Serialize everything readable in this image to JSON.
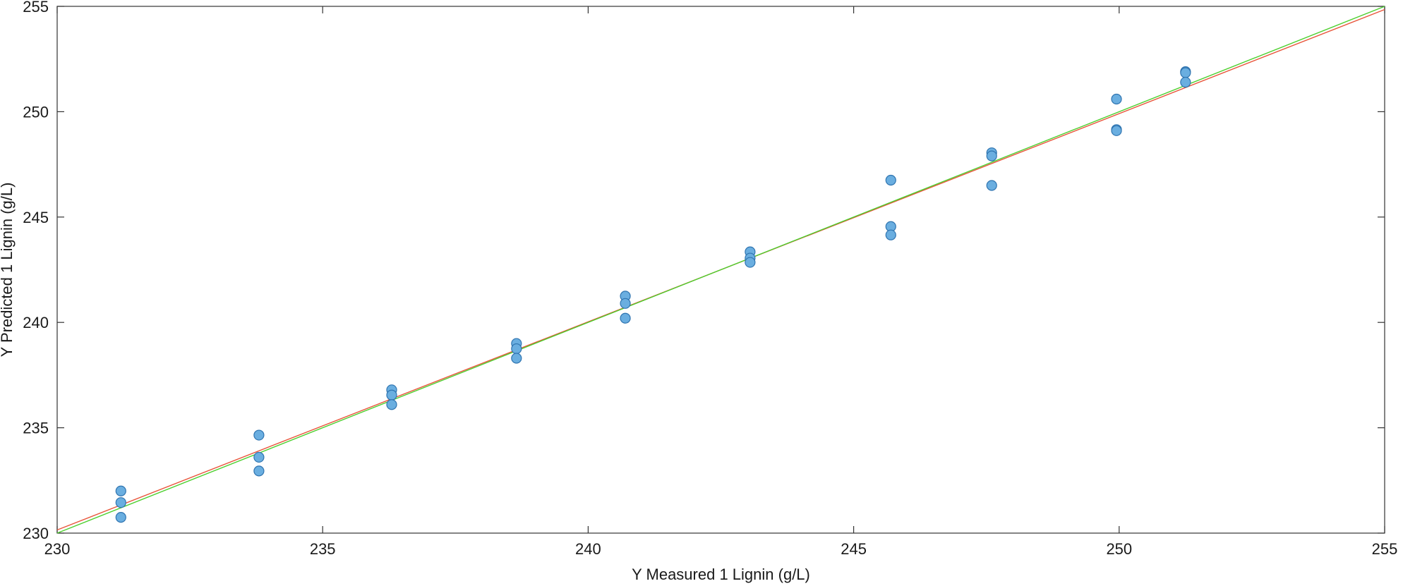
{
  "chart_data": {
    "type": "scatter",
    "title": "",
    "xlabel": "Y Measured 1 Lignin (g/L)",
    "ylabel": "Y Predicted 1 Lignin (g/L)",
    "xlim": [
      230,
      255
    ],
    "ylim": [
      230,
      255
    ],
    "xticks": [
      230,
      235,
      240,
      245,
      250,
      255
    ],
    "yticks": [
      230,
      235,
      240,
      245,
      250,
      255
    ],
    "grid": false,
    "points": [
      {
        "x": 231.2,
        "y": 232.0
      },
      {
        "x": 231.2,
        "y": 231.45
      },
      {
        "x": 231.2,
        "y": 230.75
      },
      {
        "x": 233.8,
        "y": 234.65
      },
      {
        "x": 233.8,
        "y": 233.6
      },
      {
        "x": 233.8,
        "y": 232.95
      },
      {
        "x": 236.3,
        "y": 236.8
      },
      {
        "x": 236.3,
        "y": 236.55
      },
      {
        "x": 236.3,
        "y": 236.1
      },
      {
        "x": 238.65,
        "y": 239.0
      },
      {
        "x": 238.65,
        "y": 238.75
      },
      {
        "x": 238.65,
        "y": 238.3
      },
      {
        "x": 240.7,
        "y": 241.25
      },
      {
        "x": 240.7,
        "y": 240.9
      },
      {
        "x": 240.7,
        "y": 240.2
      },
      {
        "x": 243.05,
        "y": 243.35
      },
      {
        "x": 243.05,
        "y": 243.05
      },
      {
        "x": 243.05,
        "y": 242.85
      },
      {
        "x": 245.7,
        "y": 246.75
      },
      {
        "x": 245.7,
        "y": 244.55
      },
      {
        "x": 245.7,
        "y": 244.15
      },
      {
        "x": 247.6,
        "y": 248.05
      },
      {
        "x": 247.6,
        "y": 247.9
      },
      {
        "x": 247.6,
        "y": 246.5
      },
      {
        "x": 249.95,
        "y": 250.6
      },
      {
        "x": 249.95,
        "y": 249.15
      },
      {
        "x": 249.95,
        "y": 249.1
      },
      {
        "x": 251.25,
        "y": 251.9
      },
      {
        "x": 251.25,
        "y": 251.85
      },
      {
        "x": 251.25,
        "y": 251.4
      }
    ],
    "lines": [
      {
        "color": "#e8553a",
        "x": [
          230,
          255
        ],
        "y": [
          230.15,
          254.85
        ]
      },
      {
        "color": "#4ccf2e",
        "x": [
          230,
          255
        ],
        "y": [
          230.0,
          255.0
        ]
      }
    ],
    "colors": {
      "marker_fill": "#6aaee0",
      "marker_stroke": "#2f74b0",
      "axis": "#333333"
    }
  }
}
